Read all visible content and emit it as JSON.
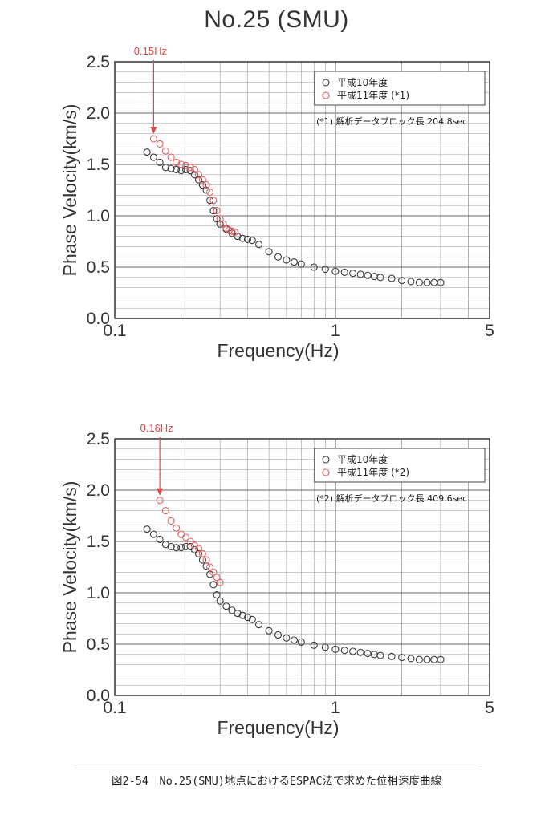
{
  "title": "No.25 (SMU)",
  "caption": "図2-54　No.25(SMU)地点におけるESPAC法で求めた位相速度曲線",
  "colors": {
    "series_1998": "#3a3a3a",
    "series_1999": "#e06060",
    "annotation": "#e04848",
    "grid": "#9a9a9a"
  },
  "chart_data": [
    {
      "type": "scatter",
      "xlabel": "Frequency(Hz)",
      "ylabel": "Phase Velocity(km/s)",
      "x_scale": "log",
      "xlim": [
        0.1,
        5
      ],
      "ylim": [
        0.0,
        2.5
      ],
      "grid": true,
      "x_ticks": [
        "0.1",
        "1",
        "5"
      ],
      "y_ticks": [
        "0.0",
        "0.5",
        "1.0",
        "1.5",
        "2.0",
        "2.5"
      ],
      "legend_position": "top-right",
      "legend": [
        "平成10年度",
        "平成11年度 (*1)"
      ],
      "note": "(*1) 解析データブロック長 204.8sec",
      "annotation": {
        "text": "0.15Hz",
        "x": 0.15
      },
      "series": [
        {
          "name": "平成10年度",
          "x": [
            0.14,
            0.15,
            0.16,
            0.17,
            0.18,
            0.19,
            0.2,
            0.21,
            0.22,
            0.23,
            0.24,
            0.25,
            0.26,
            0.27,
            0.28,
            0.29,
            0.3,
            0.32,
            0.34,
            0.36,
            0.38,
            0.4,
            0.42,
            0.45,
            0.5,
            0.55,
            0.6,
            0.65,
            0.7,
            0.8,
            0.9,
            1.0,
            1.1,
            1.2,
            1.3,
            1.4,
            1.5,
            1.6,
            1.8,
            2.0,
            2.2,
            2.4,
            2.6,
            2.8,
            3.0
          ],
          "y": [
            1.62,
            1.57,
            1.52,
            1.47,
            1.46,
            1.45,
            1.44,
            1.45,
            1.44,
            1.4,
            1.35,
            1.3,
            1.25,
            1.15,
            1.05,
            0.97,
            0.92,
            0.87,
            0.83,
            0.8,
            0.78,
            0.77,
            0.76,
            0.72,
            0.65,
            0.6,
            0.57,
            0.55,
            0.53,
            0.5,
            0.48,
            0.46,
            0.45,
            0.44,
            0.43,
            0.42,
            0.41,
            0.4,
            0.39,
            0.37,
            0.36,
            0.35,
            0.35,
            0.35,
            0.35
          ]
        },
        {
          "name": "平成11年度 (*1)",
          "x": [
            0.15,
            0.16,
            0.17,
            0.18,
            0.19,
            0.2,
            0.21,
            0.22,
            0.23,
            0.24,
            0.25,
            0.26,
            0.27,
            0.28,
            0.29,
            0.3,
            0.31,
            0.32,
            0.33,
            0.34,
            0.35
          ],
          "y": [
            1.75,
            1.7,
            1.63,
            1.57,
            1.52,
            1.5,
            1.49,
            1.47,
            1.45,
            1.4,
            1.35,
            1.3,
            1.23,
            1.15,
            1.05,
            0.97,
            0.92,
            0.88,
            0.86,
            0.85,
            0.84
          ]
        }
      ]
    },
    {
      "type": "scatter",
      "xlabel": "Frequency(Hz)",
      "ylabel": "Phase Velocity(km/s)",
      "x_scale": "log",
      "xlim": [
        0.1,
        5
      ],
      "ylim": [
        0.0,
        2.5
      ],
      "grid": true,
      "x_ticks": [
        "0.1",
        "1",
        "5"
      ],
      "y_ticks": [
        "0.0",
        "0.5",
        "1.0",
        "1.5",
        "2.0",
        "2.5"
      ],
      "legend_position": "top-right",
      "legend": [
        "平成10年度",
        "平成11年度 (*2)"
      ],
      "note": "(*2) 解析データブロック長 409.6sec",
      "annotation": {
        "text": "0.16Hz",
        "x": 0.16
      },
      "series": [
        {
          "name": "平成10年度",
          "x": [
            0.14,
            0.15,
            0.16,
            0.17,
            0.18,
            0.19,
            0.2,
            0.21,
            0.22,
            0.23,
            0.24,
            0.25,
            0.26,
            0.27,
            0.28,
            0.29,
            0.3,
            0.32,
            0.34,
            0.36,
            0.38,
            0.4,
            0.42,
            0.45,
            0.5,
            0.55,
            0.6,
            0.65,
            0.7,
            0.8,
            0.9,
            1.0,
            1.1,
            1.2,
            1.3,
            1.4,
            1.5,
            1.6,
            1.8,
            2.0,
            2.2,
            2.4,
            2.6,
            2.8,
            3.0
          ],
          "y": [
            1.62,
            1.57,
            1.52,
            1.47,
            1.45,
            1.44,
            1.44,
            1.45,
            1.45,
            1.42,
            1.38,
            1.32,
            1.26,
            1.18,
            1.08,
            0.98,
            0.92,
            0.87,
            0.83,
            0.8,
            0.78,
            0.76,
            0.74,
            0.69,
            0.63,
            0.59,
            0.56,
            0.54,
            0.52,
            0.49,
            0.47,
            0.45,
            0.44,
            0.43,
            0.42,
            0.41,
            0.4,
            0.39,
            0.38,
            0.37,
            0.36,
            0.35,
            0.35,
            0.35,
            0.35
          ]
        },
        {
          "name": "平成11年度 (*2)",
          "x": [
            0.16,
            0.17,
            0.18,
            0.19,
            0.2,
            0.21,
            0.22,
            0.23,
            0.24,
            0.25,
            0.26,
            0.27,
            0.28,
            0.29,
            0.3
          ],
          "y": [
            1.9,
            1.8,
            1.7,
            1.63,
            1.57,
            1.54,
            1.5,
            1.46,
            1.43,
            1.38,
            1.32,
            1.25,
            1.2,
            1.15,
            1.1
          ]
        }
      ]
    }
  ]
}
